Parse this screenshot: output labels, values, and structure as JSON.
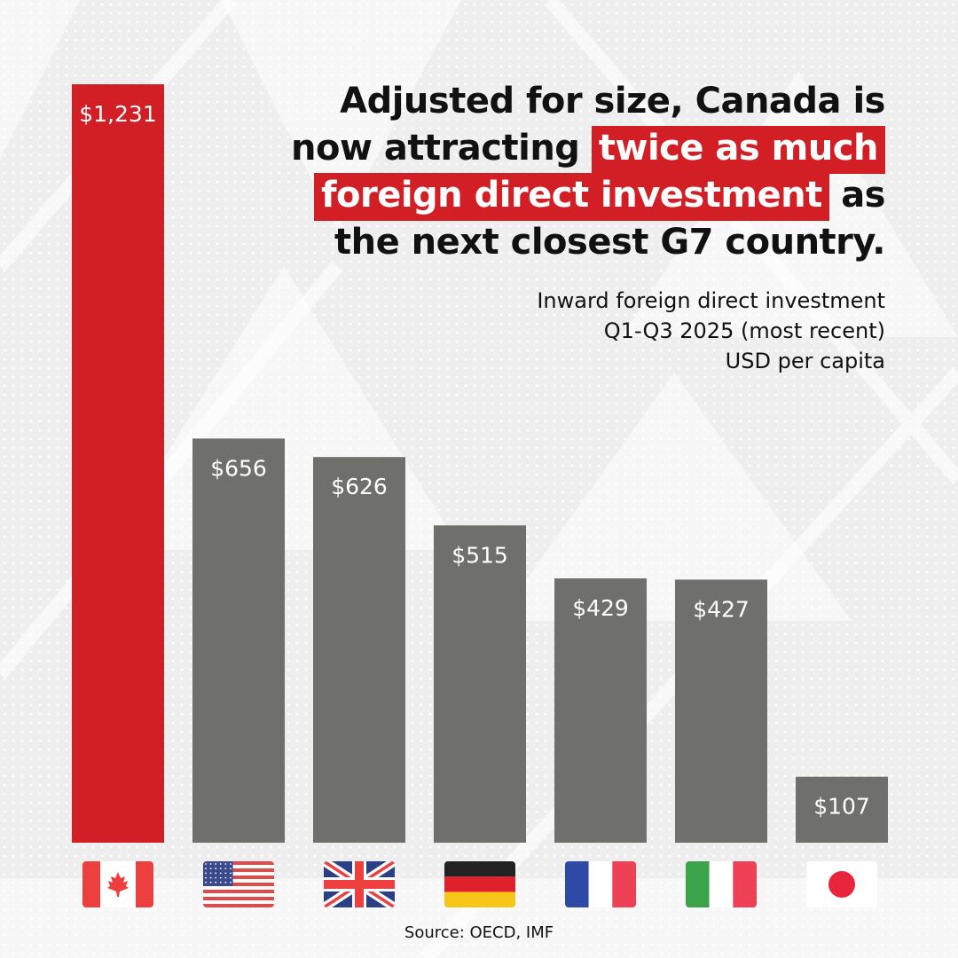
{
  "headline": {
    "part1": "Adjusted for size, Canada is now attracting",
    "highlight": "twice as much foreign direct investment",
    "part2": "as the next closest G7 country."
  },
  "subtitle": {
    "line1": "Inward foreign direct investment",
    "line2": "Q1-Q3 2025 (most recent)",
    "line3": "USD per capita"
  },
  "source": "Source: OECD, IMF",
  "colors": {
    "highlight": "#d21f26",
    "bar_primary": "#d21f26",
    "bar_other": "#6f6f6c",
    "bar_label": "#ffffff"
  },
  "chart_data": {
    "type": "bar",
    "categories": [
      "Canada",
      "United States",
      "United Kingdom",
      "Germany",
      "France",
      "Italy",
      "Japan"
    ],
    "category_icons": [
      "canada-flag-icon",
      "us-flag-icon",
      "uk-flag-icon",
      "germany-flag-icon",
      "france-flag-icon",
      "italy-flag-icon",
      "japan-flag-icon"
    ],
    "values": [
      1231,
      656,
      626,
      515,
      429,
      427,
      107
    ],
    "labels": [
      "$1,231",
      "$656",
      "$626",
      "$515",
      "$429",
      "$427",
      "$107"
    ],
    "highlight_index": 0,
    "ylim": [
      0,
      1231
    ],
    "grid": false,
    "legend": "none"
  }
}
